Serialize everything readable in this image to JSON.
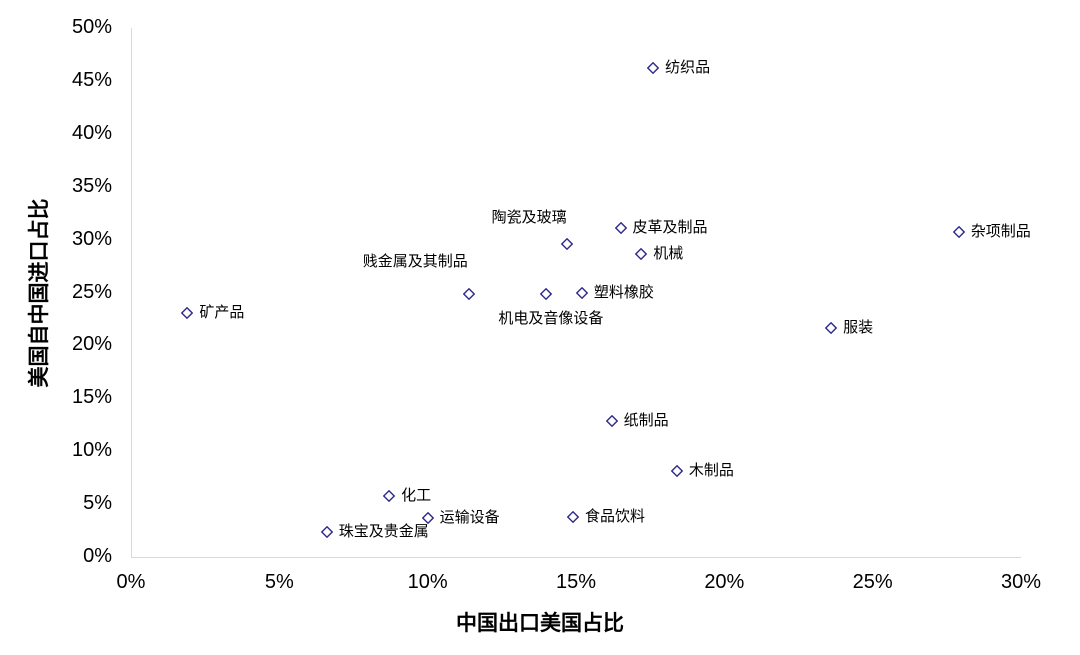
{
  "chart_data": {
    "type": "scatter",
    "title": "",
    "xlabel": "中国出口美国占比",
    "ylabel": "美国自中国进口占比",
    "xlim": [
      0,
      30
    ],
    "ylim": [
      0,
      50
    ],
    "x_ticks": [
      "0%",
      "5%",
      "10%",
      "15%",
      "20%",
      "25%",
      "30%"
    ],
    "y_ticks": [
      "0%",
      "5%",
      "10%",
      "15%",
      "20%",
      "25%",
      "30%",
      "35%",
      "40%",
      "45%",
      "50%"
    ],
    "grid": false,
    "legend": null,
    "marker": "hollow-diamond",
    "marker_color": "#2e2b8a",
    "points": [
      {
        "label": "纺织品",
        "x": 17.6,
        "y": 46.2,
        "label_pos": "right"
      },
      {
        "label": "陶瓷及玻璃",
        "x": 14.7,
        "y": 29.6,
        "label_pos": "above-left"
      },
      {
        "label": "皮革及制品",
        "x": 16.5,
        "y": 31.1,
        "label_pos": "right"
      },
      {
        "label": "机械",
        "x": 17.2,
        "y": 28.6,
        "label_pos": "right"
      },
      {
        "label": "杂项制品",
        "x": 27.9,
        "y": 30.7,
        "label_pos": "right"
      },
      {
        "label": "贱金属及其制品",
        "x": 11.4,
        "y": 24.9,
        "label_pos": "above"
      },
      {
        "label": "机电及音像设备",
        "x": 14.0,
        "y": 24.9,
        "label_pos": "below"
      },
      {
        "label": "塑料橡胶",
        "x": 15.2,
        "y": 25.0,
        "label_pos": "right"
      },
      {
        "label": "矿产品",
        "x": 1.9,
        "y": 23.1,
        "label_pos": "right"
      },
      {
        "label": "服装",
        "x": 23.6,
        "y": 21.6,
        "label_pos": "right"
      },
      {
        "label": "纸制品",
        "x": 16.2,
        "y": 12.9,
        "label_pos": "right"
      },
      {
        "label": "木制品",
        "x": 18.4,
        "y": 8.1,
        "label_pos": "right"
      },
      {
        "label": "化工",
        "x": 8.7,
        "y": 5.8,
        "label_pos": "right"
      },
      {
        "label": "运输设备",
        "x": 10.0,
        "y": 3.7,
        "label_pos": "right"
      },
      {
        "label": "食品饮料",
        "x": 14.9,
        "y": 3.8,
        "label_pos": "right"
      },
      {
        "label": "珠宝及贵金属",
        "x": 6.6,
        "y": 2.4,
        "label_pos": "right"
      }
    ]
  },
  "colors": {
    "marker": "#2e2b8a",
    "axis_line": "#d9d9d9",
    "text": "#000000"
  }
}
